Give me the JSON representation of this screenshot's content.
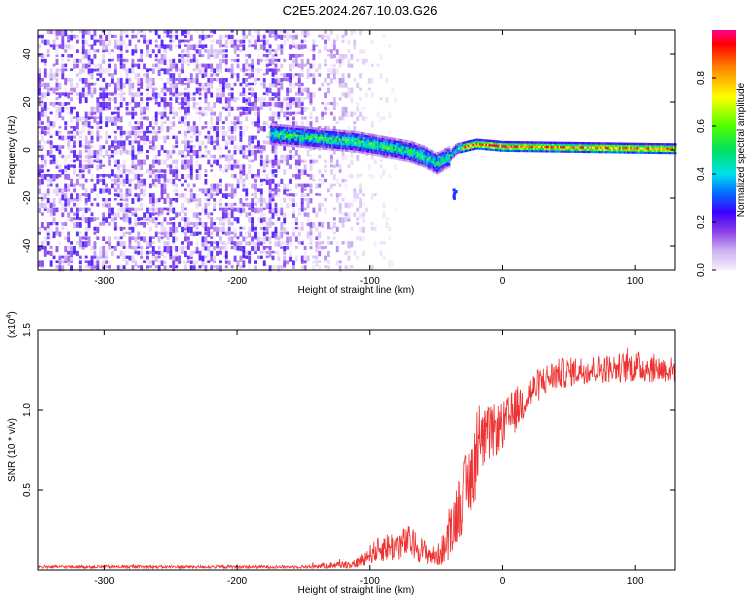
{
  "figure": {
    "title": "C2E5.2024.267.10.03.G26"
  },
  "chart_data": [
    {
      "type": "heatmap",
      "name": "spectrogram",
      "xlabel": "Height of straight line (km)",
      "ylabel": "Frequency (Hz)",
      "xlim": [
        -350,
        130
      ],
      "ylim": [
        -50,
        50
      ],
      "xticks": [
        -300,
        -200,
        -100,
        0,
        100
      ],
      "xtick_labels": [
        "-300",
        "-200",
        "-100",
        "0",
        "100"
      ],
      "yticks": [
        -40,
        -20,
        0,
        20,
        40
      ],
      "ytick_labels": [
        "-40",
        "-20",
        "0",
        "20",
        "40"
      ],
      "colorbar": {
        "label": "Normalized spectral amplitude",
        "range": [
          0,
          1
        ],
        "ticks": [
          0.0,
          0.2,
          0.4,
          0.6,
          0.8
        ],
        "tick_labels": [
          "0.0",
          "0.2",
          "0.4",
          "0.6",
          "0.8"
        ]
      },
      "features": {
        "noise_region_x": [
          -350,
          -120
        ],
        "signal_track": [
          [
            -170,
            6
          ],
          [
            -150,
            5
          ],
          [
            -130,
            4
          ],
          [
            -110,
            3
          ],
          [
            -90,
            1
          ],
          [
            -70,
            -1
          ],
          [
            -60,
            -3
          ],
          [
            -50,
            -6
          ],
          [
            -40,
            -3
          ],
          [
            -35,
            0
          ],
          [
            -20,
            2
          ],
          [
            0,
            1
          ],
          [
            130,
            0
          ]
        ],
        "dip": [
          -37,
          -18
        ]
      }
    },
    {
      "type": "line",
      "name": "snr",
      "xlabel": "Height of straight line (km)",
      "ylabel": "SNR (10 * v/v)",
      "scale_label": "(x10",
      "scale_exponent": "4",
      "xlim": [
        -350,
        130
      ],
      "ylim": [
        0,
        1.5
      ],
      "xticks": [
        -300,
        -200,
        -100,
        0,
        100
      ],
      "xtick_labels": [
        "-300",
        "-200",
        "-100",
        "0",
        "100"
      ],
      "yticks": [
        0.5,
        1.0,
        1.5
      ],
      "ytick_labels": [
        "0.5",
        "1.0",
        "1.5"
      ],
      "color": "#ee3333",
      "envelope": {
        "x": [
          -350,
          -150,
          -110,
          -100,
          -90,
          -80,
          -70,
          -60,
          -50,
          -40,
          -35,
          -30,
          -25,
          -20,
          -15,
          -10,
          0,
          10,
          20,
          30,
          40,
          60,
          80,
          100,
          130
        ],
        "mean": [
          0.02,
          0.02,
          0.04,
          0.1,
          0.14,
          0.15,
          0.18,
          0.12,
          0.08,
          0.18,
          0.35,
          0.45,
          0.55,
          0.7,
          0.8,
          0.85,
          0.9,
          1.0,
          1.1,
          1.18,
          1.22,
          1.25,
          1.26,
          1.27,
          1.25
        ],
        "noise": [
          0.01,
          0.01,
          0.03,
          0.06,
          0.09,
          0.1,
          0.1,
          0.08,
          0.06,
          0.14,
          0.2,
          0.22,
          0.25,
          0.25,
          0.2,
          0.18,
          0.15,
          0.14,
          0.12,
          0.1,
          0.1,
          0.09,
          0.09,
          0.1,
          0.08
        ]
      }
    }
  ]
}
